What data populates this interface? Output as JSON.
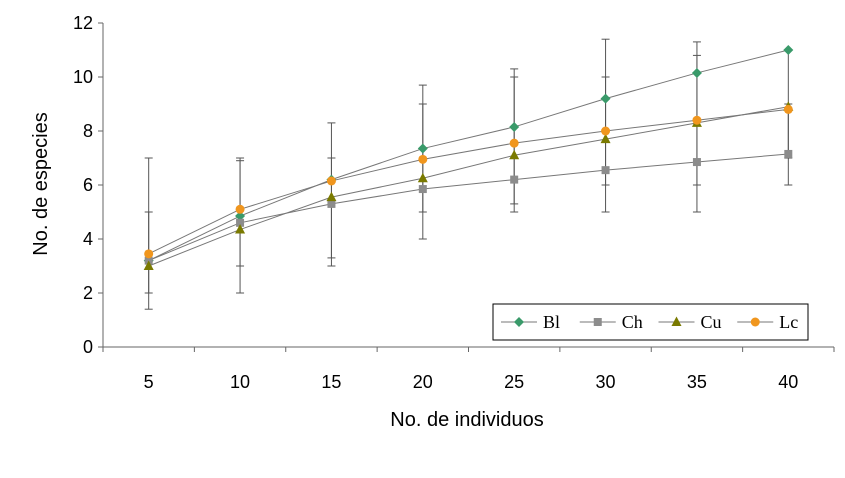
{
  "chart_data": {
    "type": "line",
    "title": "",
    "xlabel": "No. de individuos",
    "ylabel": "No. de especies",
    "x": [
      5,
      10,
      15,
      20,
      25,
      30,
      35,
      40
    ],
    "x_tick_labels": [
      "5",
      "10",
      "15",
      "20",
      "25",
      "30",
      "35",
      "40"
    ],
    "ylim": [
      0,
      12
    ],
    "y_ticks": [
      0,
      2,
      4,
      6,
      8,
      10,
      12
    ],
    "y_tick_labels": [
      "0",
      "2",
      "4",
      "6",
      "8",
      "10",
      "12"
    ],
    "grid": false,
    "legend_position": "bottom-right",
    "error_bars": [
      {
        "x": 5,
        "low": 1.4,
        "high": 7.0
      },
      {
        "x": 5,
        "low": 2.0,
        "high": 5.0
      },
      {
        "x": 10,
        "low": 2.0,
        "high": 7.0
      },
      {
        "x": 10,
        "low": 3.0,
        "high": 6.9
      },
      {
        "x": 15,
        "low": 3.0,
        "high": 8.3
      },
      {
        "x": 15,
        "low": 3.3,
        "high": 7.0
      },
      {
        "x": 20,
        "low": 4.0,
        "high": 9.7
      },
      {
        "x": 20,
        "low": 5.0,
        "high": 9.0
      },
      {
        "x": 25,
        "low": 5.0,
        "high": 10.3
      },
      {
        "x": 25,
        "low": 5.3,
        "high": 10.0
      },
      {
        "x": 30,
        "low": 5.0,
        "high": 11.4
      },
      {
        "x": 30,
        "low": 6.0,
        "high": 10.0
      },
      {
        "x": 35,
        "low": 5.0,
        "high": 11.3
      },
      {
        "x": 35,
        "low": 6.0,
        "high": 10.8
      },
      {
        "x": 40,
        "low": 6.0,
        "high": 11.0
      },
      {
        "x": 40,
        "low": 7.0,
        "high": 9.0
      }
    ],
    "series": [
      {
        "name": "Bl",
        "color": "#3a9a6a",
        "marker": "diamond",
        "values": [
          3.2,
          4.85,
          6.2,
          7.35,
          8.15,
          9.2,
          10.15,
          11.0
        ]
      },
      {
        "name": "Ch",
        "color": "#8c8c8c",
        "marker": "square",
        "values": [
          3.2,
          4.6,
          5.3,
          5.85,
          6.2,
          6.55,
          6.85,
          7.15
        ]
      },
      {
        "name": "Cu",
        "color": "#7a7a00",
        "marker": "triangle",
        "values": [
          3.0,
          4.35,
          5.55,
          6.25,
          7.1,
          7.7,
          8.3,
          8.9
        ]
      },
      {
        "name": "Lc",
        "color": "#f0961e",
        "marker": "circle",
        "values": [
          3.45,
          5.1,
          6.15,
          6.95,
          7.55,
          8.0,
          8.4,
          8.8
        ]
      }
    ]
  }
}
